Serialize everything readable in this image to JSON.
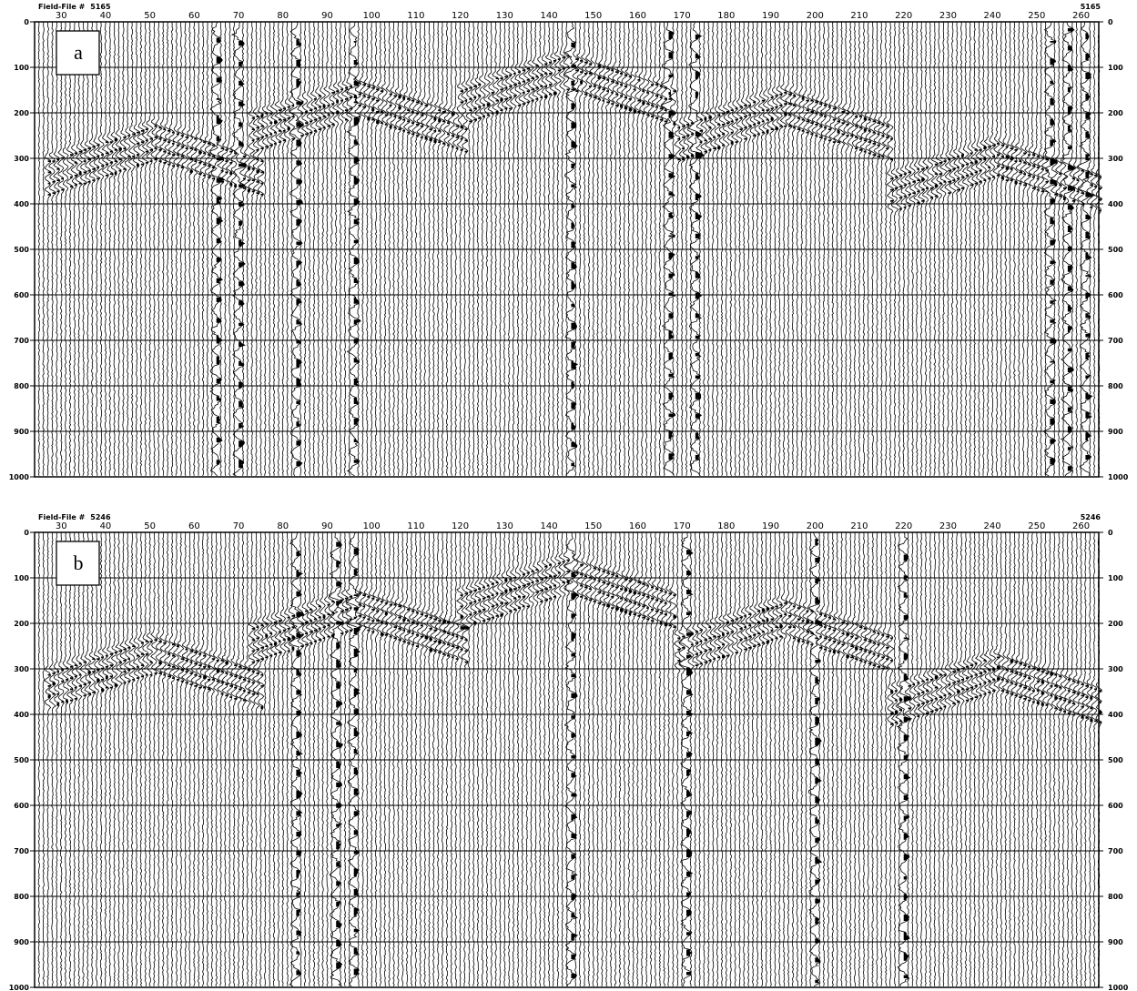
{
  "panels": [
    {
      "label": "a",
      "header_text": "Field-File #",
      "file_number": "5165",
      "file_number_right": "5165",
      "x_ticks": [
        "30",
        "40",
        "50",
        "60",
        "70",
        "80",
        "90",
        "100",
        "110",
        "120",
        "130",
        "140",
        "150",
        "160",
        "170",
        "180",
        "190",
        "200",
        "210",
        "220",
        "230",
        "240",
        "250",
        "260"
      ],
      "y_ticks": [
        "0",
        "100",
        "200",
        "300",
        "400",
        "500",
        "600",
        "700",
        "800",
        "900",
        "1000"
      ]
    },
    {
      "label": "b",
      "header_text": "Field-File #",
      "file_number": "5246",
      "file_number_right": "5246",
      "x_ticks": [
        "30",
        "40",
        "50",
        "60",
        "70",
        "80",
        "90",
        "100",
        "110",
        "120",
        "130",
        "140",
        "150",
        "160",
        "170",
        "180",
        "190",
        "200",
        "210",
        "220",
        "230",
        "240",
        "250",
        "260"
      ],
      "y_ticks": [
        "0",
        "100",
        "200",
        "300",
        "400",
        "500",
        "600",
        "700",
        "800",
        "900",
        "1000"
      ]
    }
  ],
  "chart_data": [
    {
      "type": "seismic-shot-gather",
      "title": "Field-File # 5165",
      "panel_label": "a",
      "x_axis": {
        "values": [
          30,
          40,
          50,
          60,
          70,
          80,
          90,
          100,
          110,
          120,
          130,
          140,
          150,
          160,
          170,
          180,
          190,
          200,
          210,
          220,
          230,
          240,
          250,
          260
        ],
        "range": [
          24,
          264
        ]
      },
      "y_axis": {
        "values": [
          0,
          100,
          200,
          300,
          400,
          500,
          600,
          700,
          800,
          900,
          1000
        ],
        "range": [
          0,
          1000
        ],
        "reversed": true
      },
      "grid": true,
      "hyperbola_apexes": [
        {
          "channel": 51,
          "time": 225
        },
        {
          "channel": 97,
          "time": 130
        },
        {
          "channel": 144,
          "time": 70
        },
        {
          "channel": 193,
          "time": 150
        },
        {
          "channel": 241,
          "time": 262
        }
      ],
      "noisy_channels": [
        65,
        70,
        83,
        96,
        145,
        167,
        173,
        253,
        257,
        261
      ]
    },
    {
      "type": "seismic-shot-gather",
      "title": "Field-File # 5246",
      "panel_label": "b",
      "x_axis": {
        "values": [
          30,
          40,
          50,
          60,
          70,
          80,
          90,
          100,
          110,
          120,
          130,
          140,
          150,
          160,
          170,
          180,
          190,
          200,
          210,
          220,
          230,
          240,
          250,
          260
        ],
        "range": [
          24,
          264
        ]
      },
      "y_axis": {
        "values": [
          0,
          100,
          200,
          300,
          400,
          500,
          600,
          700,
          800,
          900,
          1000
        ],
        "range": [
          0,
          1000
        ],
        "reversed": true
      },
      "grid": true,
      "hyperbola_apexes": [
        {
          "channel": 51,
          "time": 230
        },
        {
          "channel": 97,
          "time": 130
        },
        {
          "channel": 144,
          "time": 55
        },
        {
          "channel": 193,
          "time": 150
        },
        {
          "channel": 241,
          "time": 268
        }
      ],
      "noisy_channels": [
        83,
        92,
        96,
        145,
        171,
        200,
        220
      ]
    }
  ]
}
